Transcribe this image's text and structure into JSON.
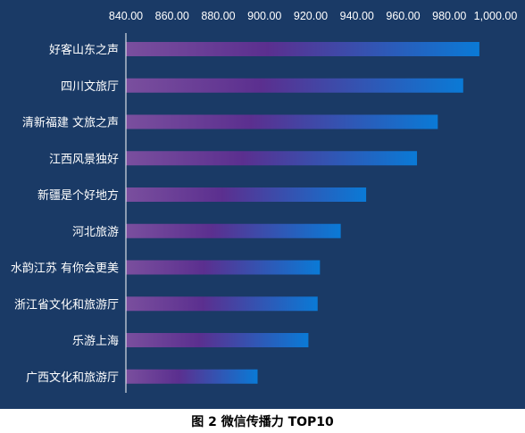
{
  "chart_data": {
    "type": "bar",
    "orientation": "horizontal",
    "xaxis_position": "top",
    "grid": false,
    "legend": "none",
    "xlim": [
      840,
      1000
    ],
    "xticks": [
      840,
      860,
      880,
      900,
      920,
      940,
      960,
      980,
      1000
    ],
    "xtick_labels": [
      "840.00",
      "860.00",
      "880.00",
      "900.00",
      "920.00",
      "940.00",
      "960.00",
      "980.00",
      "1,000.00"
    ],
    "categories": [
      "好客山东之声",
      "四川文旅厅",
      "清新福建 文旅之声",
      "江西风景独好",
      "新疆是个好地方",
      "河北旅游",
      "水韵江苏 有你会更美",
      "浙江省文化和旅游厅",
      "乐游上海",
      "广西文化和旅游厅"
    ],
    "values": [
      993,
      986,
      975,
      966,
      944,
      933,
      924,
      923,
      919,
      897
    ],
    "colors": {
      "background": "#1a3a66",
      "bar_start": "#7a4f9e",
      "bar_mid": "#5b2f8f",
      "bar_end": "#0a7ad6",
      "text": "#ffffff"
    }
  },
  "caption": "图 2  微信传播力 TOP10"
}
